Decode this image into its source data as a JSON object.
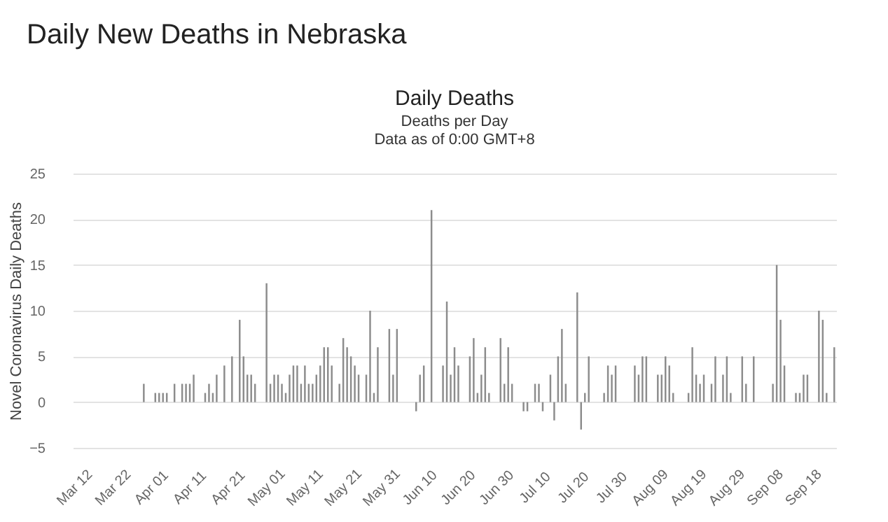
{
  "chart_data": {
    "type": "bar",
    "title": "Daily Deaths",
    "subtitle": "Deaths per Day\nData as of 0:00 GMT+8",
    "ylabel": "Novel Coronavirus Daily Deaths",
    "annotations": [
      "Daily New Deaths in Nebraska"
    ],
    "categories": [
      "Mar 12",
      null,
      null,
      null,
      null,
      null,
      null,
      null,
      null,
      null,
      "Mar 22",
      null,
      null,
      null,
      null,
      null,
      null,
      null,
      null,
      null,
      "Apr 01",
      null,
      null,
      null,
      null,
      null,
      null,
      null,
      null,
      null,
      "Apr 11",
      null,
      null,
      null,
      null,
      null,
      null,
      null,
      null,
      null,
      "Apr 21",
      null,
      null,
      null,
      null,
      null,
      null,
      null,
      null,
      null,
      "May 01",
      null,
      null,
      null,
      null,
      null,
      null,
      null,
      null,
      null,
      "May 11",
      null,
      null,
      null,
      null,
      null,
      null,
      null,
      null,
      null,
      "May 21",
      null,
      null,
      null,
      null,
      null,
      null,
      null,
      null,
      null,
      "May 31",
      null,
      null,
      null,
      null,
      null,
      null,
      null,
      null,
      null,
      "Jun 10",
      null,
      null,
      null,
      null,
      null,
      null,
      null,
      null,
      null,
      "Jun 20",
      null,
      null,
      null,
      null,
      null,
      null,
      null,
      null,
      null,
      "Jun 30",
      null,
      null,
      null,
      null,
      null,
      null,
      null,
      null,
      null,
      "Jul 10",
      null,
      null,
      null,
      null,
      null,
      null,
      null,
      null,
      null,
      "Jul 20",
      null,
      null,
      null,
      null,
      null,
      null,
      null,
      null,
      null,
      "Jul 30",
      null,
      null,
      null,
      null,
      null,
      null,
      null,
      null,
      null,
      "Aug 09",
      null,
      null,
      null,
      null,
      null,
      null,
      null,
      null,
      null,
      "Aug 19",
      null,
      null,
      null,
      null,
      null,
      null,
      null,
      null,
      null,
      "Aug 29",
      null,
      null,
      null,
      null,
      null,
      null,
      null,
      null,
      null,
      "Sep 08",
      null,
      null,
      null,
      null,
      null,
      null,
      null,
      null,
      null,
      "Sep 18",
      null,
      null,
      null,
      null,
      null,
      null,
      null,
      null
    ],
    "values": [
      null,
      null,
      null,
      null,
      null,
      null,
      null,
      null,
      null,
      null,
      null,
      null,
      null,
      null,
      null,
      null,
      null,
      null,
      2,
      null,
      null,
      1,
      1,
      1,
      1,
      null,
      2,
      null,
      2,
      2,
      2,
      3,
      null,
      null,
      1,
      2,
      1,
      3,
      null,
      4,
      null,
      5,
      null,
      9,
      5,
      3,
      3,
      2,
      null,
      null,
      13,
      2,
      3,
      3,
      2,
      1,
      3,
      4,
      4,
      2,
      4,
      2,
      2,
      3,
      4,
      6,
      6,
      4,
      null,
      2,
      7,
      6,
      5,
      4,
      3,
      null,
      3,
      10,
      1,
      6,
      null,
      null,
      8,
      3,
      8,
      null,
      null,
      null,
      null,
      -1,
      3,
      4,
      null,
      21,
      null,
      null,
      4,
      11,
      3,
      6,
      4,
      null,
      null,
      5,
      7,
      1,
      3,
      6,
      1,
      null,
      null,
      7,
      2,
      6,
      2,
      null,
      null,
      -1,
      -1,
      null,
      2,
      2,
      -1,
      null,
      3,
      -2,
      5,
      8,
      2,
      null,
      null,
      12,
      -3,
      1,
      5,
      null,
      null,
      null,
      1,
      4,
      3,
      4,
      null,
      null,
      null,
      null,
      4,
      3,
      5,
      5,
      null,
      null,
      3,
      3,
      5,
      4,
      1,
      null,
      null,
      null,
      1,
      6,
      3,
      2,
      3,
      null,
      2,
      5,
      null,
      3,
      5,
      1,
      null,
      null,
      5,
      2,
      null,
      5,
      null,
      null,
      null,
      null,
      2,
      15,
      9,
      4,
      null,
      null,
      1,
      1,
      3,
      3,
      null,
      null,
      10,
      9,
      1,
      null,
      6
    ],
    "color": "#8c8c8c",
    "ylim": [
      -5,
      25
    ],
    "yticks": [
      -5,
      0,
      5,
      10,
      15,
      20,
      25
    ],
    "grid": "y"
  }
}
